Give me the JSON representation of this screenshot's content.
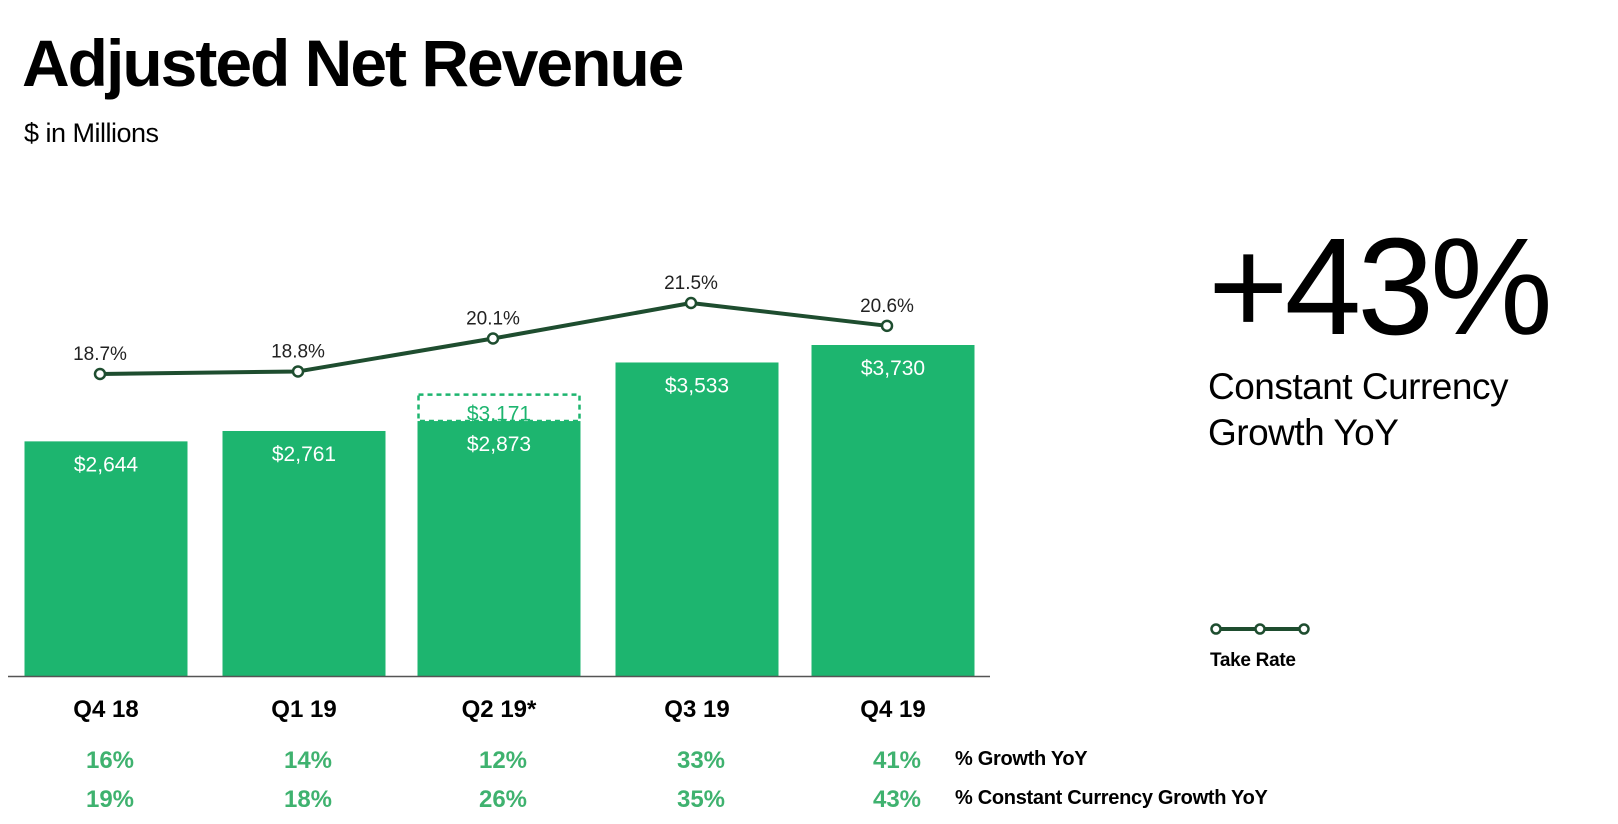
{
  "header": {
    "title": "Adjusted Net Revenue",
    "subtitle": "$ in Millions"
  },
  "callout": {
    "value": "+43%",
    "description_line1": "Constant Currency",
    "description_line2": "Growth YoY"
  },
  "legend": {
    "label": "Take Rate"
  },
  "colors": {
    "bar": "#1db56f",
    "line": "#1e4d2f",
    "growth_text": "#3fb26f",
    "adjusted_text": "#1db56f"
  },
  "chart_data": {
    "type": "bar",
    "categories": [
      "Q4 18",
      "Q1 19",
      "Q2 19*",
      "Q3 19",
      "Q4 19"
    ],
    "values": [
      2644,
      2761,
      2873,
      3533,
      3730
    ],
    "value_labels": [
      "$2,644",
      "$2,761",
      "$2,873",
      "$3,533",
      "$3,730"
    ],
    "adjusted": {
      "index": 2,
      "value": 3171,
      "label": "$3,171"
    },
    "take_rate": {
      "values": [
        18.7,
        18.8,
        20.1,
        21.5,
        20.6
      ],
      "labels": [
        "18.7%",
        "18.8%",
        "20.1%",
        "21.5%",
        "20.6%"
      ]
    },
    "growth_yoy": {
      "name": "% Growth YoY",
      "values": [
        "16%",
        "14%",
        "12%",
        "33%",
        "41%"
      ]
    },
    "cc_growth_yoy": {
      "name": "% Constant Currency Growth YoY",
      "values": [
        "19%",
        "18%",
        "26%",
        "35%",
        "43%"
      ]
    },
    "ylim": [
      0,
      3730
    ]
  }
}
